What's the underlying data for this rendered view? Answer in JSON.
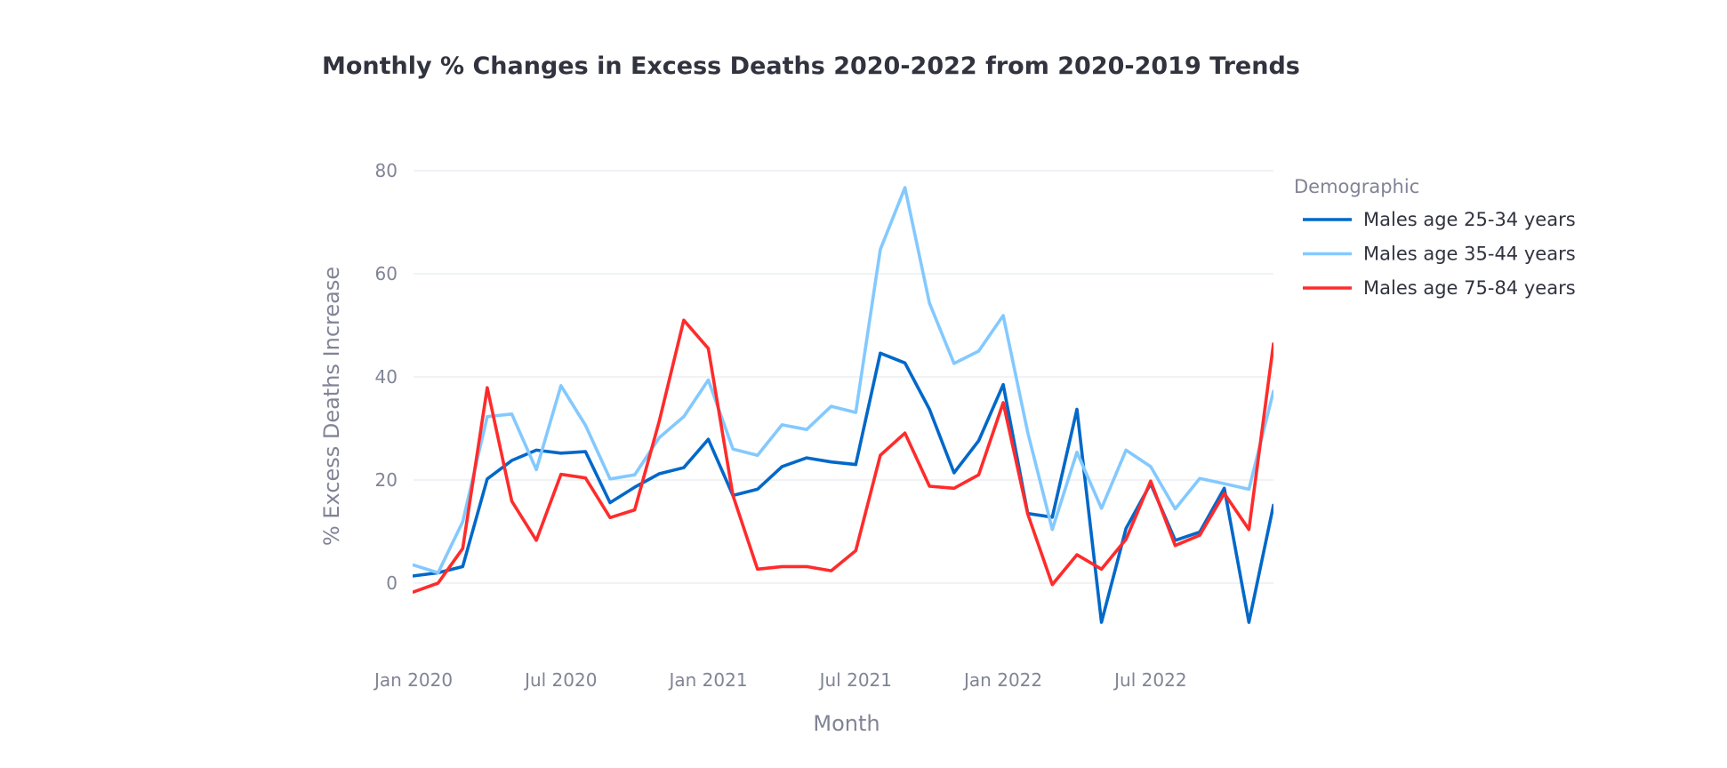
{
  "chart_data": {
    "type": "line",
    "title": "Monthly % Changes in Excess Deaths 2020-2022 from 2020-2019 Trends",
    "xlabel": "Month",
    "ylabel": "% Excess Deaths Increase",
    "legend_title": "Demographic",
    "legend_position": "right",
    "grid": true,
    "x": [
      "2020-01",
      "2020-02",
      "2020-03",
      "2020-04",
      "2020-05",
      "2020-06",
      "2020-07",
      "2020-08",
      "2020-09",
      "2020-10",
      "2020-11",
      "2020-12",
      "2021-01",
      "2021-02",
      "2021-03",
      "2021-04",
      "2021-05",
      "2021-06",
      "2021-07",
      "2021-08",
      "2021-09",
      "2021-10",
      "2021-11",
      "2021-12",
      "2022-01",
      "2022-02",
      "2022-03",
      "2022-04",
      "2022-05",
      "2022-06",
      "2022-07",
      "2022-08",
      "2022-09",
      "2022-10",
      "2022-11",
      "2022-12"
    ],
    "x_ticks": [
      {
        "value": "2020-01",
        "label": "Jan 2020"
      },
      {
        "value": "2020-07",
        "label": "Jul 2020"
      },
      {
        "value": "2021-01",
        "label": "Jan 2021"
      },
      {
        "value": "2021-07",
        "label": "Jul 2021"
      },
      {
        "value": "2022-01",
        "label": "Jan 2022"
      },
      {
        "value": "2022-07",
        "label": "Jul 2022"
      }
    ],
    "ylim": [
      -13,
      86
    ],
    "y_ticks": [
      0,
      20,
      40,
      60,
      80
    ],
    "series": [
      {
        "name": "Males age 25-34 years",
        "color": "#0068c9",
        "values": [
          1.4,
          2.0,
          3.2,
          20.2,
          23.8,
          25.8,
          25.2,
          25.5,
          15.6,
          18.6,
          21.2,
          22.4,
          27.9,
          17.0,
          18.2,
          22.6,
          24.3,
          23.5,
          23.0,
          44.6,
          42.7,
          33.7,
          21.4,
          27.6,
          38.5,
          13.5,
          12.8,
          33.7,
          -7.6,
          10.6,
          19.3,
          8.3,
          9.9,
          18.4,
          -7.6,
          15.1
        ]
      },
      {
        "name": "Males age 35-44 years",
        "color": "#83c9ff",
        "values": [
          3.5,
          2.0,
          11.9,
          32.3,
          32.8,
          22.0,
          38.3,
          30.6,
          20.2,
          21.0,
          28.2,
          32.3,
          39.4,
          26.0,
          24.8,
          30.7,
          29.8,
          34.3,
          33.1,
          64.7,
          76.7,
          54.3,
          42.6,
          45.0,
          51.9,
          29.2,
          10.4,
          25.4,
          14.5,
          25.8,
          22.6,
          14.4,
          20.3,
          19.3,
          18.2,
          37.2
        ]
      },
      {
        "name": "Males age 75-84 years",
        "color": "#ff2b2b",
        "values": [
          -1.7,
          0.0,
          6.7,
          37.9,
          15.9,
          8.3,
          21.1,
          20.4,
          12.7,
          14.2,
          31.4,
          51.0,
          45.5,
          17.0,
          2.7,
          3.2,
          3.2,
          2.4,
          6.3,
          24.8,
          29.1,
          18.8,
          18.4,
          21.0,
          35.0,
          13.4,
          -0.3,
          5.5,
          2.7,
          8.5,
          19.8,
          7.3,
          9.3,
          17.4,
          10.4,
          46.4
        ]
      }
    ]
  }
}
